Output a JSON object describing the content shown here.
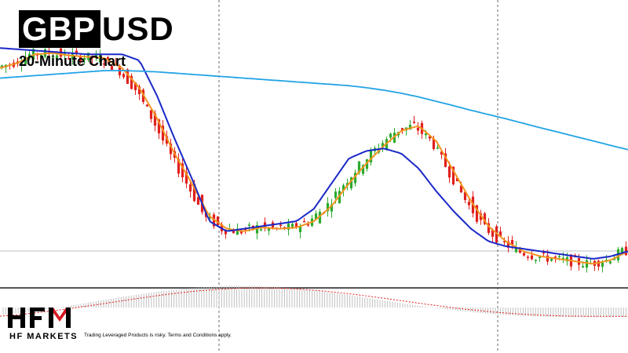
{
  "title_part1": "GBP",
  "title_part2": "USD",
  "subtitle": "20-Minute Chart",
  "brand_name": "HF MARKETS",
  "disclaimer": "Trading Leveraged Products is risky. Terms and Conditions apply.",
  "colors": {
    "bull": "#2eaa2e",
    "bear": "#e0201e",
    "ma_fast": "#f39420",
    "ma_mid": "#1a28c8",
    "ma_slow": "#22a3e6",
    "osc": "#e0201e",
    "logo_red": "#d6161e"
  },
  "chart_data": {
    "type": "line",
    "title": "GBPUSD",
    "subtitle": "20-Minute Chart",
    "xlabel": "",
    "ylabel": "",
    "price_axis_visible": false,
    "grid": false,
    "series": [
      {
        "values": [
          0.76,
          0.78,
          0.815,
          0.82,
          0.81,
          0.805,
          0.8,
          0.76,
          0.68,
          0.56,
          0.42,
          0.3,
          0.17,
          0.12,
          0.11,
          0.125,
          0.12,
          0.125,
          0.15,
          0.21,
          0.3,
          0.38,
          0.45,
          0.51,
          0.53,
          0.47,
          0.35,
          0.23,
          0.13,
          0.07,
          0.03,
          0.01,
          0.0,
          -0.01,
          -0.02,
          -0.005,
          0.03
        ]
      },
      {
        "values": [
          0.84,
          0.835,
          0.83,
          0.825,
          0.82,
          0.815,
          0.815,
          0.815,
          0.79,
          0.65,
          0.48,
          0.32,
          0.15,
          0.11,
          0.12,
          0.13,
          0.14,
          0.15,
          0.2,
          0.3,
          0.4,
          0.43,
          0.44,
          0.42,
          0.36,
          0.27,
          0.19,
          0.12,
          0.07,
          0.05,
          0.04,
          0.03,
          0.02,
          0.01,
          0.0,
          0.01,
          0.03
        ]
      },
      {
        "values": [
          0.72,
          0.725,
          0.73,
          0.735,
          0.74,
          0.745,
          0.75,
          0.75,
          0.748,
          0.745,
          0.74,
          0.735,
          0.73,
          0.725,
          0.72,
          0.715,
          0.71,
          0.705,
          0.7,
          0.695,
          0.69,
          0.682,
          0.672,
          0.66,
          0.645,
          0.628,
          0.61,
          0.592,
          0.575,
          0.558,
          0.54,
          0.522,
          0.505,
          0.487,
          0.47,
          0.452,
          0.435
        ]
      }
    ],
    "candles": {
      "count": 160
    },
    "oscillator": {
      "type": "histogram with signal line"
    }
  }
}
